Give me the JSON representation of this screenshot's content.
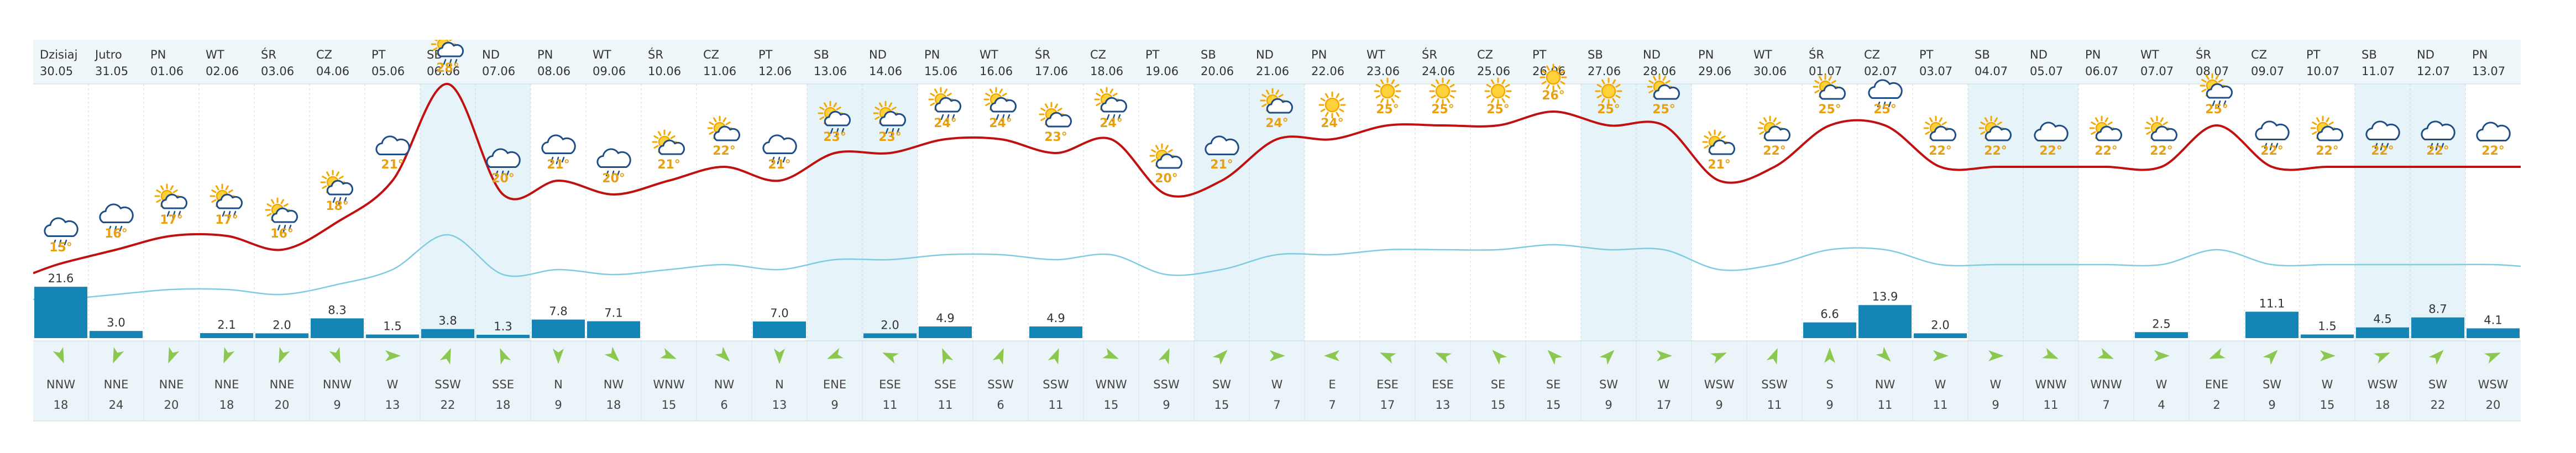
{
  "colors": {
    "weekend_bg": "#e6f3f9",
    "header_bg": "#eef6fa",
    "wind_row_bg": "#eaf4f9",
    "temp_line": "#c01010",
    "humidity_line": "#7fcbe0",
    "precip_bar": "#1585b5",
    "temp_text": "#e8a010",
    "arrow": "#8cc850",
    "grid": "#c8d8e0"
  },
  "days": [
    {
      "dow": "Dzisiaj",
      "date": "30.05",
      "temp": 15,
      "icon": "cloud-rain-icon",
      "precip": 21.6,
      "wind_dir": "NNW",
      "wind_speed": 18,
      "weekend": false
    },
    {
      "dow": "Jutro",
      "date": "31.05",
      "temp": 16,
      "icon": "cloud-rain-icon",
      "precip": 3.0,
      "wind_dir": "NNE",
      "wind_speed": 24,
      "weekend": false
    },
    {
      "dow": "PN",
      "date": "01.06",
      "temp": 17,
      "icon": "sun-cloud-rain-icon",
      "precip": null,
      "wind_dir": "NNE",
      "wind_speed": 20,
      "weekend": false
    },
    {
      "dow": "WT",
      "date": "02.06",
      "temp": 17,
      "icon": "sun-cloud-rain-icon",
      "precip": 2.1,
      "wind_dir": "NNE",
      "wind_speed": 18,
      "weekend": false
    },
    {
      "dow": "ŚR",
      "date": "03.06",
      "temp": 16,
      "icon": "sun-cloud-rain-icon",
      "precip": 2.0,
      "wind_dir": "NNE",
      "wind_speed": 20,
      "weekend": false
    },
    {
      "dow": "CZ",
      "date": "04.06",
      "temp": 18,
      "icon": "sun-cloud-rain-icon",
      "precip": 8.3,
      "wind_dir": "NNW",
      "wind_speed": 9,
      "weekend": false
    },
    {
      "dow": "PT",
      "date": "05.06",
      "temp": 21,
      "icon": "cloud-icon",
      "precip": 1.5,
      "wind_dir": "W",
      "wind_speed": 13,
      "weekend": false
    },
    {
      "dow": "SB",
      "date": "06.06",
      "temp": 28,
      "icon": "sun-cloud-rain-icon",
      "precip": 3.8,
      "wind_dir": "SSW",
      "wind_speed": 22,
      "weekend": true
    },
    {
      "dow": "ND",
      "date": "07.06",
      "temp": 20,
      "icon": "cloud-rain-icon",
      "precip": 1.3,
      "wind_dir": "SSE",
      "wind_speed": 18,
      "weekend": true
    },
    {
      "dow": "PN",
      "date": "08.06",
      "temp": 21,
      "icon": "cloud-rain-icon",
      "precip": 7.8,
      "wind_dir": "N",
      "wind_speed": 9,
      "weekend": false
    },
    {
      "dow": "WT",
      "date": "09.06",
      "temp": 20,
      "icon": "cloud-rain-icon",
      "precip": 7.1,
      "wind_dir": "NW",
      "wind_speed": 18,
      "weekend": false
    },
    {
      "dow": "ŚR",
      "date": "10.06",
      "temp": 21,
      "icon": "sun-cloud-icon",
      "precip": null,
      "wind_dir": "WNW",
      "wind_speed": 15,
      "weekend": false
    },
    {
      "dow": "CZ",
      "date": "11.06",
      "temp": 22,
      "icon": "sun-cloud-icon",
      "precip": null,
      "wind_dir": "NW",
      "wind_speed": 6,
      "weekend": false
    },
    {
      "dow": "PT",
      "date": "12.06",
      "temp": 21,
      "icon": "cloud-rain-icon",
      "precip": 7.0,
      "wind_dir": "N",
      "wind_speed": 13,
      "weekend": false
    },
    {
      "dow": "SB",
      "date": "13.06",
      "temp": 23,
      "icon": "sun-cloud-rain-icon",
      "precip": null,
      "wind_dir": "ENE",
      "wind_speed": 9,
      "weekend": true
    },
    {
      "dow": "ND",
      "date": "14.06",
      "temp": 23,
      "icon": "sun-cloud-rain-icon",
      "precip": 2.0,
      "wind_dir": "ESE",
      "wind_speed": 11,
      "weekend": true
    },
    {
      "dow": "PN",
      "date": "15.06",
      "temp": 24,
      "icon": "sun-cloud-rain-icon",
      "precip": 4.9,
      "wind_dir": "SSE",
      "wind_speed": 11,
      "weekend": false
    },
    {
      "dow": "WT",
      "date": "16.06",
      "temp": 24,
      "icon": "sun-cloud-rain-icon",
      "precip": null,
      "wind_dir": "SSW",
      "wind_speed": 6,
      "weekend": false
    },
    {
      "dow": "ŚR",
      "date": "17.06",
      "temp": 23,
      "icon": "sun-cloud-icon",
      "precip": 4.9,
      "wind_dir": "SSW",
      "wind_speed": 11,
      "weekend": false
    },
    {
      "dow": "CZ",
      "date": "18.06",
      "temp": 24,
      "icon": "sun-cloud-rain-icon",
      "precip": null,
      "wind_dir": "WNW",
      "wind_speed": 15,
      "weekend": false
    },
    {
      "dow": "PT",
      "date": "19.06",
      "temp": 20,
      "icon": "sun-cloud-icon",
      "precip": null,
      "wind_dir": "SSW",
      "wind_speed": 9,
      "weekend": false
    },
    {
      "dow": "SB",
      "date": "20.06",
      "temp": 21,
      "icon": "cloud-icon",
      "precip": null,
      "wind_dir": "SW",
      "wind_speed": 15,
      "weekend": true
    },
    {
      "dow": "ND",
      "date": "21.06",
      "temp": 24,
      "icon": "sun-cloud-icon",
      "precip": null,
      "wind_dir": "W",
      "wind_speed": 7,
      "weekend": true
    },
    {
      "dow": "PN",
      "date": "22.06",
      "temp": 24,
      "icon": "sun-icon",
      "precip": null,
      "wind_dir": "E",
      "wind_speed": 7,
      "weekend": false
    },
    {
      "dow": "WT",
      "date": "23.06",
      "temp": 25,
      "icon": "sun-icon",
      "precip": null,
      "wind_dir": "ESE",
      "wind_speed": 17,
      "weekend": false
    },
    {
      "dow": "ŚR",
      "date": "24.06",
      "temp": 25,
      "icon": "sun-icon",
      "precip": null,
      "wind_dir": "ESE",
      "wind_speed": 13,
      "weekend": false
    },
    {
      "dow": "CZ",
      "date": "25.06",
      "temp": 25,
      "icon": "sun-icon",
      "precip": null,
      "wind_dir": "SE",
      "wind_speed": 15,
      "weekend": false
    },
    {
      "dow": "PT",
      "date": "26.06",
      "temp": 26,
      "icon": "sun-icon",
      "precip": null,
      "wind_dir": "SE",
      "wind_speed": 15,
      "weekend": false
    },
    {
      "dow": "SB",
      "date": "27.06",
      "temp": 25,
      "icon": "sun-icon",
      "precip": null,
      "wind_dir": "SW",
      "wind_speed": 9,
      "weekend": true
    },
    {
      "dow": "ND",
      "date": "28.06",
      "temp": 25,
      "icon": "sun-cloud-icon",
      "precip": null,
      "wind_dir": "W",
      "wind_speed": 17,
      "weekend": true
    },
    {
      "dow": "PN",
      "date": "29.06",
      "temp": 21,
      "icon": "sun-cloud-icon",
      "precip": null,
      "wind_dir": "WSW",
      "wind_speed": 9,
      "weekend": false
    },
    {
      "dow": "WT",
      "date": "30.06",
      "temp": 22,
      "icon": "sun-cloud-icon",
      "precip": null,
      "wind_dir": "SSW",
      "wind_speed": 11,
      "weekend": false
    },
    {
      "dow": "ŚR",
      "date": "01.07",
      "temp": 25,
      "icon": "sun-cloud-icon",
      "precip": 6.6,
      "wind_dir": "S",
      "wind_speed": 9,
      "weekend": false
    },
    {
      "dow": "CZ",
      "date": "02.07",
      "temp": 25,
      "icon": "cloud-rain-icon",
      "precip": 13.9,
      "wind_dir": "NW",
      "wind_speed": 11,
      "weekend": false
    },
    {
      "dow": "PT",
      "date": "03.07",
      "temp": 22,
      "icon": "sun-cloud-icon",
      "precip": 2.0,
      "wind_dir": "W",
      "wind_speed": 11,
      "weekend": false
    },
    {
      "dow": "SB",
      "date": "04.07",
      "temp": 22,
      "icon": "sun-cloud-icon",
      "precip": null,
      "wind_dir": "W",
      "wind_speed": 9,
      "weekend": true
    },
    {
      "dow": "ND",
      "date": "05.07",
      "temp": 22,
      "icon": "cloud-icon",
      "precip": null,
      "wind_dir": "WNW",
      "wind_speed": 11,
      "weekend": true
    },
    {
      "dow": "PN",
      "date": "06.07",
      "temp": 22,
      "icon": "sun-cloud-icon",
      "precip": null,
      "wind_dir": "WNW",
      "wind_speed": 7,
      "weekend": false
    },
    {
      "dow": "WT",
      "date": "07.07",
      "temp": 22,
      "icon": "sun-cloud-icon",
      "precip": 2.5,
      "wind_dir": "W",
      "wind_speed": 4,
      "weekend": false
    },
    {
      "dow": "ŚR",
      "date": "08.07",
      "temp": 25,
      "icon": "sun-cloud-rain-icon",
      "precip": null,
      "wind_dir": "ENE",
      "wind_speed": 2,
      "weekend": false
    },
    {
      "dow": "CZ",
      "date": "09.07",
      "temp": 22,
      "icon": "cloud-rain-icon",
      "precip": 11.1,
      "wind_dir": "SW",
      "wind_speed": 9,
      "weekend": false
    },
    {
      "dow": "PT",
      "date": "10.07",
      "temp": 22,
      "icon": "sun-cloud-icon",
      "precip": 1.5,
      "wind_dir": "W",
      "wind_speed": 15,
      "weekend": false
    },
    {
      "dow": "SB",
      "date": "11.07",
      "temp": 22,
      "icon": "cloud-rain-icon",
      "precip": 4.5,
      "wind_dir": "WSW",
      "wind_speed": 18,
      "weekend": true
    },
    {
      "dow": "ND",
      "date": "12.07",
      "temp": 22,
      "icon": "cloud-rain-icon",
      "precip": 8.7,
      "wind_dir": "SW",
      "wind_speed": 22,
      "weekend": true
    },
    {
      "dow": "PN",
      "date": "13.07",
      "temp": 22,
      "icon": "cloud-icon",
      "precip": 4.1,
      "wind_dir": "WSW",
      "wind_speed": 20,
      "weekend": false
    }
  ]
}
